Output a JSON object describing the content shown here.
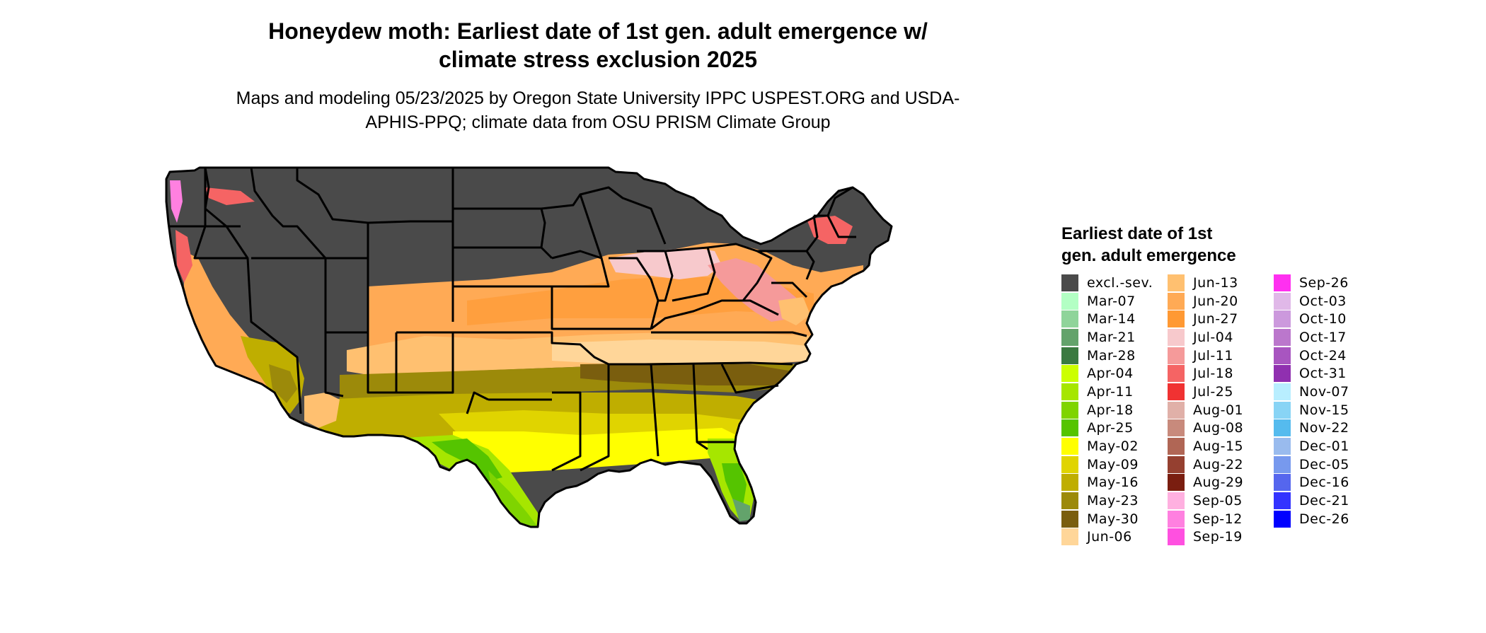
{
  "header": {
    "title": "Honeydew moth: Earliest date of 1st gen. adult emergence w/ climate stress exclusion 2025",
    "subtitle": "Maps and modeling 05/23/2025 by Oregon State University IPPC USPEST.ORG and USDA-APHIS-PPQ; climate data from OSU PRISM Climate Group"
  },
  "legend": {
    "title": "Earliest date of 1st gen. adult emergence",
    "columns": [
      [
        {
          "label": "excl.-sev.",
          "color": "#4a4a4a"
        },
        {
          "label": "Mar-07",
          "color": "#b3ffc4"
        },
        {
          "label": "Mar-14",
          "color": "#8fd49a"
        },
        {
          "label": "Mar-21",
          "color": "#63a36b"
        },
        {
          "label": "Mar-28",
          "color": "#3a7a40"
        },
        {
          "label": "Apr-04",
          "color": "#ccff00"
        },
        {
          "label": "Apr-11",
          "color": "#a6e600"
        },
        {
          "label": "Apr-18",
          "color": "#7fd400"
        },
        {
          "label": "Apr-25",
          "color": "#55c400"
        },
        {
          "label": "May-02",
          "color": "#ffff00"
        },
        {
          "label": "May-09",
          "color": "#e0d400"
        },
        {
          "label": "May-16",
          "color": "#bfae00"
        },
        {
          "label": "May-23",
          "color": "#9c8a0a"
        },
        {
          "label": "May-30",
          "color": "#7a5e0e"
        },
        {
          "label": "Jun-06",
          "color": "#ffd699"
        }
      ],
      [
        {
          "label": "Jun-13",
          "color": "#ffc070"
        },
        {
          "label": "Jun-20",
          "color": "#ffaa55"
        },
        {
          "label": "Jun-27",
          "color": "#ff9933"
        },
        {
          "label": "Jul-04",
          "color": "#f7c9cc"
        },
        {
          "label": "Jul-11",
          "color": "#f59a9a"
        },
        {
          "label": "Jul-18",
          "color": "#f56464"
        },
        {
          "label": "Jul-25",
          "color": "#f03232"
        },
        {
          "label": "Aug-01",
          "color": "#e0b0a8"
        },
        {
          "label": "Aug-08",
          "color": "#c88a7c"
        },
        {
          "label": "Aug-15",
          "color": "#b06655"
        },
        {
          "label": "Aug-22",
          "color": "#954030"
        },
        {
          "label": "Aug-29",
          "color": "#7a1e10"
        },
        {
          "label": "Sep-05",
          "color": "#ffb0e0"
        },
        {
          "label": "Sep-12",
          "color": "#ff80e0"
        },
        {
          "label": "Sep-19",
          "color": "#ff50e0"
        }
      ],
      [
        {
          "label": "Sep-26",
          "color": "#ff30f0"
        },
        {
          "label": "Oct-03",
          "color": "#e0b8e8"
        },
        {
          "label": "Oct-10",
          "color": "#cc99dd"
        },
        {
          "label": "Oct-17",
          "color": "#bb77cc"
        },
        {
          "label": "Oct-24",
          "color": "#a855c0"
        },
        {
          "label": "Oct-31",
          "color": "#9030b0"
        },
        {
          "label": "Nov-07",
          "color": "#b8eeff"
        },
        {
          "label": "Nov-15",
          "color": "#88d4f5"
        },
        {
          "label": "Nov-22",
          "color": "#55bbee"
        },
        {
          "label": "Dec-01",
          "color": "#99bbee"
        },
        {
          "label": "Dec-05",
          "color": "#7799ee"
        },
        {
          "label": "Dec-16",
          "color": "#5566ee"
        },
        {
          "label": "Dec-21",
          "color": "#3333ff"
        },
        {
          "label": "Dec-26",
          "color": "#0000ff"
        }
      ]
    ]
  }
}
